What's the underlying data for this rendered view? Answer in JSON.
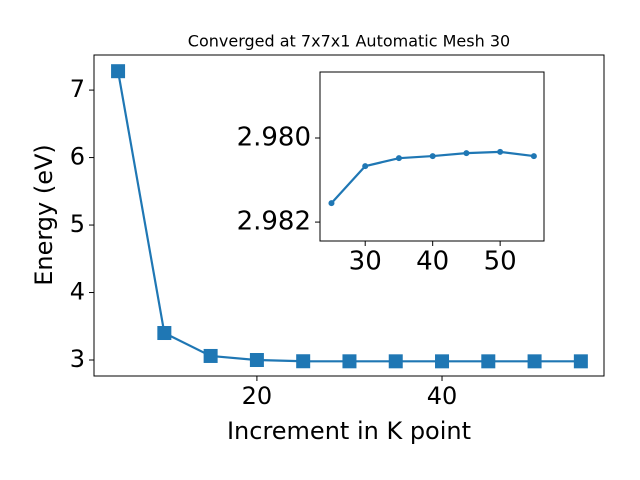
{
  "chart_data": [
    {
      "type": "line",
      "title": "Converged at 7x7x1 Automatic Mesh 30",
      "x_label": "Increment in K point",
      "y_label": "Energy (eV)",
      "x": [
        5,
        10,
        15,
        20,
        25,
        30,
        35,
        40,
        45,
        50,
        55
      ],
      "series": [
        {
          "color": "#1f77b4",
          "marker": "square",
          "values": [
            7.28,
            3.4,
            3.06,
            3.0,
            2.9816,
            2.9807,
            2.9805,
            2.9804,
            2.9804,
            2.9803,
            2.9804
          ]
        }
      ],
      "xlim": [
        2.4,
        57.5
      ],
      "xticks": [
        20,
        40
      ],
      "ylim": [
        2.763,
        7.52
      ],
      "yticks": [
        3,
        4,
        5,
        6,
        7
      ]
    },
    {
      "type": "line",
      "x": [
        25,
        30,
        35,
        40,
        45,
        50,
        55
      ],
      "series": [
        {
          "color": "#1f77b4",
          "marker": "circle",
          "values": [
            2.98155,
            2.98067,
            2.98048,
            2.98043,
            2.98036,
            2.98033,
            2.98043
          ]
        }
      ],
      "xlim": [
        23.3,
        56.5
      ],
      "xticks": [
        30,
        40,
        50
      ],
      "ylim": [
        2.98245,
        2.97843
      ],
      "yticks": [
        {
          "value": 2.98,
          "label": "2.980"
        },
        {
          "value": 2.982,
          "label": "2.982"
        }
      ]
    }
  ]
}
